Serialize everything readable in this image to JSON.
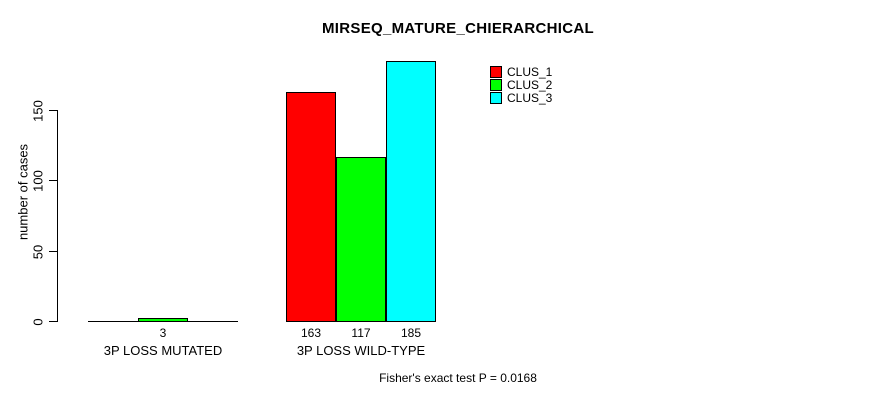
{
  "title": "MIRSEQ_MATURE_CHIERARCHICAL",
  "colors": {
    "background": "#ffffff",
    "axis": "#000000",
    "clus_1": "#ff0000",
    "clus_2": "#00ff00",
    "clus_3": "#00ffff"
  },
  "chart_data": {
    "type": "bar",
    "title": "MIRSEQ_MATURE_CHIERARCHICAL",
    "xlabel": "",
    "ylabel": "number of cases",
    "categories": [
      "3P LOSS MUTATED",
      "3P LOSS WILD-TYPE"
    ],
    "series": [
      {
        "name": "CLUS_1",
        "color": "#ff0000",
        "values": [
          0,
          163
        ]
      },
      {
        "name": "CLUS_2",
        "color": "#00ff00",
        "values": [
          3,
          117
        ]
      },
      {
        "name": "CLUS_3",
        "color": "#00ffff",
        "values": [
          0,
          185
        ]
      }
    ],
    "bar_labels": [
      [
        "",
        "3",
        ""
      ],
      [
        "163",
        "117",
        "185"
      ]
    ],
    "yticks": [
      "0",
      "50",
      "100",
      "150"
    ],
    "ytick_values": [
      0,
      50,
      100,
      150
    ],
    "ylim": [
      0,
      150
    ],
    "grid": false,
    "legend": {
      "position": "top-right",
      "entries": [
        "CLUS_1",
        "CLUS_2",
        "CLUS_3"
      ]
    },
    "annotation": "Fisher's exact test P = 0.0168"
  },
  "footer": {
    "text": "Fisher's exact test P = 0.0168"
  }
}
